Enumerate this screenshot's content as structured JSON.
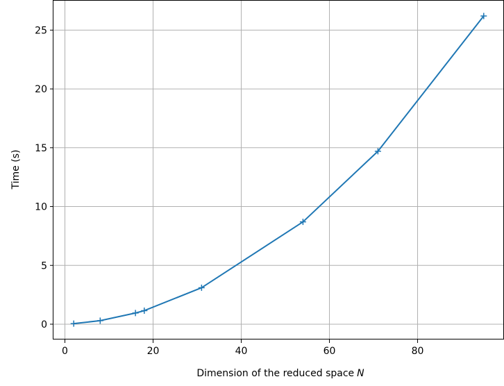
{
  "chart_data": {
    "type": "line",
    "title": "",
    "xlabel": "Dimension of the reduced space",
    "xlabel_symbol": "N",
    "ylabel": "Time (s)",
    "xlim": [
      -2.6,
      99.6
    ],
    "ylim": [
      -1.3,
      27.5
    ],
    "xticks": [
      0,
      20,
      40,
      60,
      80
    ],
    "xtick_labels": [
      "0",
      "20",
      "40",
      "60",
      "80"
    ],
    "yticks": [
      0,
      5,
      10,
      15,
      20,
      25
    ],
    "ytick_labels": [
      "0",
      "5",
      "10",
      "15",
      "20",
      "25"
    ],
    "grid": true,
    "marker": "plus",
    "series": [
      {
        "color": "#1f77b4",
        "x": [
          2,
          8,
          16,
          18,
          31,
          54,
          71,
          95
        ],
        "y": [
          0.05,
          0.3,
          0.95,
          1.15,
          3.1,
          8.7,
          14.7,
          26.2
        ]
      }
    ]
  }
}
